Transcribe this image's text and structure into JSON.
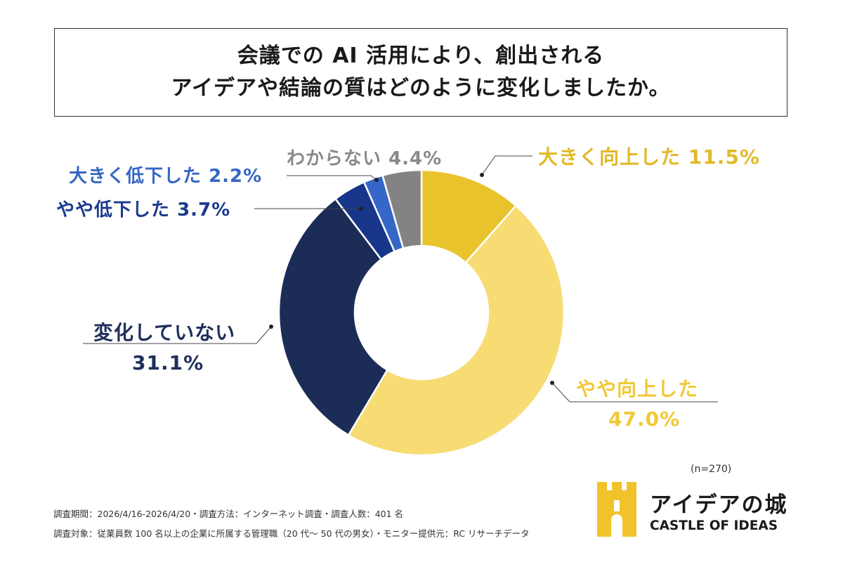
{
  "title": {
    "line1": "会議での AI 活用により、創出される",
    "line2": "アイデアや結論の質はどのように変化しましたか。"
  },
  "chart_data": {
    "type": "pie",
    "donut": true,
    "start": "top",
    "direction": "clockwise",
    "slices": [
      {
        "label": "大きく向上した",
        "value": 11.5,
        "value_label": "11.5%",
        "color": "#E9C32C",
        "text_color": "#E2B929"
      },
      {
        "label": "やや向上した",
        "value": 47.0,
        "value_label": "47.0%",
        "color": "#F7DC74",
        "text_color": "#F0C936"
      },
      {
        "label": "変化していない",
        "value": 31.1,
        "value_label": "31.1%",
        "color": "#1B2D57",
        "text_color": "#1E2F5A"
      },
      {
        "label": "やや低下した",
        "value": 3.7,
        "value_label": "3.7%",
        "color": "#17368A",
        "text_color": "#1A3A8E"
      },
      {
        "label": "大きく低下した",
        "value": 2.2,
        "value_label": "2.2%",
        "color": "#3567C8",
        "text_color": "#3566C5"
      },
      {
        "label": "わからない",
        "value": 4.4,
        "value_label": "4.4%",
        "color": "#858283",
        "text_color": "#8A8A8A"
      }
    ]
  },
  "sample_size": "(n=270)",
  "notes": {
    "line1": "調査期間：2026/4/16-2026/4/20・調査方法：インターネット調査・調査人数：401 名",
    "line2": "調査対象：従業員数 100 名以上の企業に所属する管理職（20 代〜 50 代の男女）・モニター提供元：RC リサーチデータ"
  },
  "logo": {
    "name_jp": "アイデアの城",
    "name_en": "CASTLE OF IDEAS",
    "color": "#F0C32A"
  }
}
